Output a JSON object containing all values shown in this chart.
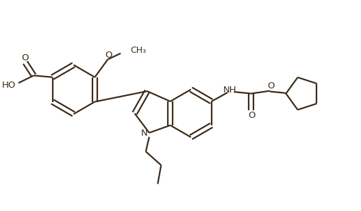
{
  "bg_color": "#ffffff",
  "line_color": "#3a2a1a",
  "line_width": 1.6,
  "figsize": [
    5.27,
    3.08
  ],
  "dpi": 100,
  "xlim": [
    0,
    10.54
  ],
  "ylim": [
    0,
    6.16
  ]
}
